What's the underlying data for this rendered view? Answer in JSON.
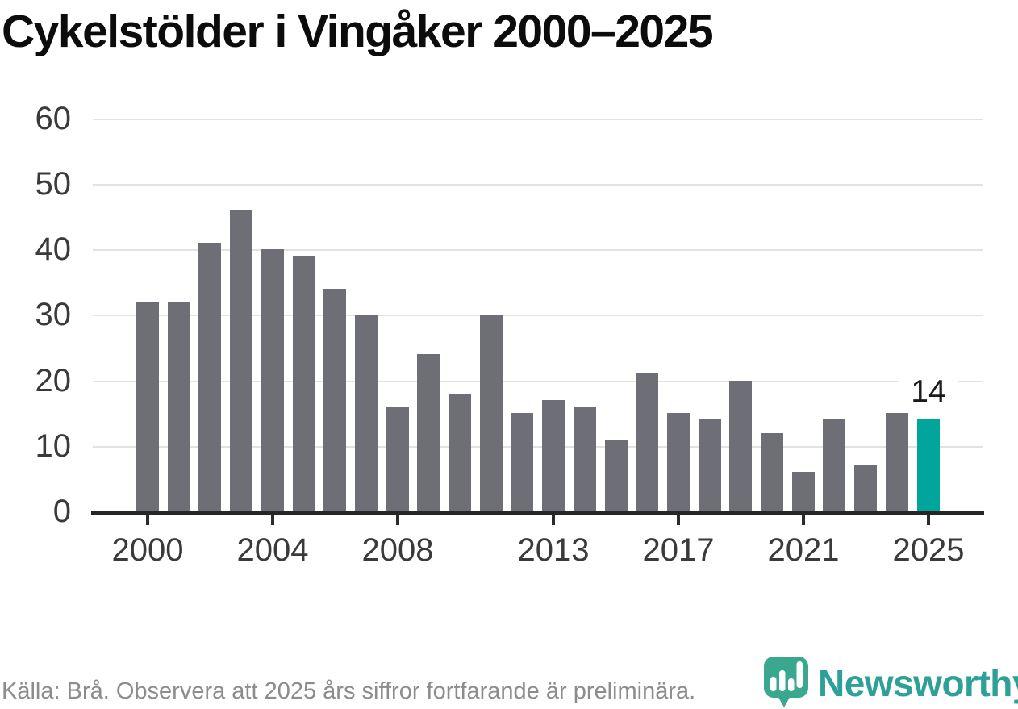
{
  "title": "Cykelstölder i Vingåker 2000–2025",
  "chart_data": {
    "type": "bar",
    "title": "Cykelstölder i Vingåker 2000–2025",
    "xlabel": "",
    "ylabel": "",
    "categories": [
      2000,
      2001,
      2002,
      2003,
      2004,
      2005,
      2006,
      2007,
      2008,
      2009,
      2010,
      2011,
      2012,
      2013,
      2014,
      2015,
      2016,
      2017,
      2018,
      2019,
      2020,
      2021,
      2022,
      2023,
      2024,
      2025
    ],
    "values": [
      32,
      32,
      41,
      46,
      40,
      39,
      34,
      30,
      16,
      24,
      18,
      30,
      15,
      17,
      16,
      11,
      21,
      15,
      14,
      20,
      12,
      6,
      14,
      7,
      15,
      14
    ],
    "ylim": [
      0,
      60
    ],
    "y_ticks": [
      0,
      10,
      20,
      30,
      40,
      50,
      60
    ],
    "x_tick_years": [
      2000,
      2004,
      2008,
      2013,
      2017,
      2021,
      2025
    ],
    "grid": "horizontal",
    "legend": "none",
    "bar_color": "#6e6e77",
    "highlight_year": 2025,
    "highlight_color": "#00a59c",
    "highlight_value_label": "14"
  },
  "footer": {
    "source_note": "Källa: Brå. Observera att 2025 års siffror fortfarande är preliminära."
  },
  "branding": {
    "logo_text": "Newsworthy",
    "logo_text_color": "#2da197",
    "icon_color": "#3aa78f",
    "icon_name": "newsworthy-bar-chart-bubble-icon"
  }
}
